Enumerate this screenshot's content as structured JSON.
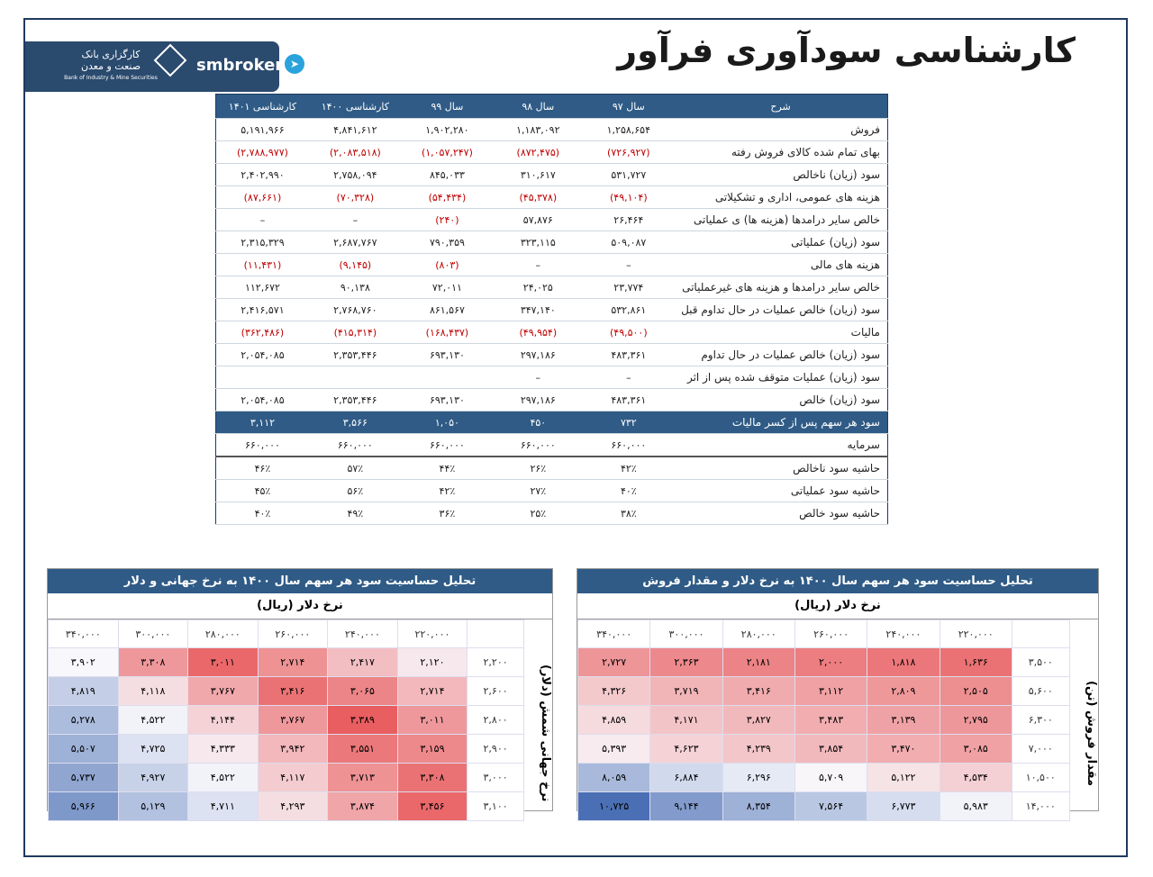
{
  "title": "کارشناسی سودآوری فرآور",
  "logo": {
    "bank_line1": "کارگزاری بانک",
    "bank_line2": "صنعت و معدن",
    "bank_en": "Bank of Industry & Mine Securities",
    "brand": "smbroker"
  },
  "main_table": {
    "headers": [
      "شرح",
      "سال ۹۷",
      "سال ۹۸",
      "سال ۹۹",
      "کارشناسی ۱۴۰۰",
      "کارشناسی ۱۴۰۱"
    ],
    "rows": [
      {
        "label": "فروش",
        "values": [
          "۱,۲۵۸,۶۵۴",
          "۱,۱۸۳,۰۹۲",
          "۱,۹۰۲,۲۸۰",
          "۴,۸۴۱,۶۱۲",
          "۵,۱۹۱,۹۶۶"
        ]
      },
      {
        "label": "بهای تمام شده کالای فروش رفته",
        "neg": true,
        "values": [
          "(۷۲۶,۹۲۷)",
          "(۸۷۲,۴۷۵)",
          "(۱,۰۵۷,۲۴۷)",
          "(۲,۰۸۳,۵۱۸)",
          "(۲,۷۸۸,۹۷۷)"
        ]
      },
      {
        "label": "سود (زیان) ناخالص",
        "values": [
          "۵۳۱,۷۲۷",
          "۳۱۰,۶۱۷",
          "۸۴۵,۰۳۳",
          "۲,۷۵۸,۰۹۴",
          "۲,۴۰۲,۹۹۰"
        ]
      },
      {
        "label": "هزینه های عمومی، اداری و تشکیلاتی",
        "neg": true,
        "values": [
          "(۴۹,۱۰۴)",
          "(۴۵,۳۷۸)",
          "(۵۴,۴۳۴)",
          "(۷۰,۳۲۸)",
          "(۸۷,۶۶۱)"
        ]
      },
      {
        "label": "خالص سایر درامدها (هزینه ها) ی عملیاتی",
        "values": [
          "۲۶,۴۶۴",
          "۵۷,۸۷۶",
          "(۲۴۰)",
          "–",
          "–"
        ],
        "negidx": [
          2
        ]
      },
      {
        "label": "سود (زیان) عملیاتی",
        "values": [
          "۵۰۹,۰۸۷",
          "۳۲۳,۱۱۵",
          "۷۹۰,۳۵۹",
          "۲,۶۸۷,۷۶۷",
          "۲,۳۱۵,۳۲۹"
        ]
      },
      {
        "label": "هزینه های مالی",
        "values": [
          "–",
          "–",
          "(۸۰۳)",
          "(۹,۱۴۵)",
          "(۱۱,۴۳۱)"
        ],
        "negidx": [
          2,
          3,
          4
        ]
      },
      {
        "label": "خالص سایر درامدها و هزینه های غیرعملیاتی",
        "values": [
          "۲۳,۷۷۴",
          "۲۴,۰۲۵",
          "۷۲,۰۱۱",
          "۹۰,۱۳۸",
          "۱۱۲,۶۷۲"
        ]
      },
      {
        "label": "سود (زیان) خالص عملیات در حال تداوم قبل",
        "values": [
          "۵۳۲,۸۶۱",
          "۳۴۷,۱۴۰",
          "۸۶۱,۵۶۷",
          "۲,۷۶۸,۷۶۰",
          "۲,۴۱۶,۵۷۱"
        ]
      },
      {
        "label": "مالیات",
        "neg": true,
        "values": [
          "(۴۹,۵۰۰)",
          "(۴۹,۹۵۴)",
          "(۱۶۸,۴۳۷)",
          "(۴۱۵,۳۱۴)",
          "(۳۶۲,۴۸۶)"
        ]
      },
      {
        "label": "سود (زیان) خالص عملیات در حال تداوم",
        "values": [
          "۴۸۳,۳۶۱",
          "۲۹۷,۱۸۶",
          "۶۹۳,۱۳۰",
          "۲,۳۵۳,۴۴۶",
          "۲,۰۵۴,۰۸۵"
        ]
      },
      {
        "label": "سود (زیان) عملیات متوقف شده پس از اثر",
        "values": [
          "–",
          "–",
          "",
          "",
          ""
        ]
      },
      {
        "label": "سود (زیان) خالص",
        "values": [
          "۴۸۳,۳۶۱",
          "۲۹۷,۱۸۶",
          "۶۹۳,۱۳۰",
          "۲,۳۵۳,۴۴۶",
          "۲,۰۵۴,۰۸۵"
        ]
      },
      {
        "label": "سود هر سهم پس از کسر مالیات",
        "highlight": true,
        "values": [
          "۷۳۲",
          "۴۵۰",
          "۱,۰۵۰",
          "۳,۵۶۶",
          "۳,۱۱۲"
        ]
      },
      {
        "label": "سرمایه",
        "values": [
          "۶۶۰,۰۰۰",
          "۶۶۰,۰۰۰",
          "۶۶۰,۰۰۰",
          "۶۶۰,۰۰۰",
          "۶۶۰,۰۰۰"
        ]
      },
      {
        "label": "حاشیه سود ناخالص",
        "sep": true,
        "values": [
          "۴۲٪",
          "۲۶٪",
          "۴۴٪",
          "۵۷٪",
          "۴۶٪"
        ]
      },
      {
        "label": "حاشیه سود عملیاتی",
        "values": [
          "۴۰٪",
          "۲۷٪",
          "۴۲٪",
          "۵۶٪",
          "۴۵٪"
        ]
      },
      {
        "label": "حاشیه سود خالص",
        "values": [
          "۳۸٪",
          "۲۵٪",
          "۳۶٪",
          "۴۹٪",
          "۴۰٪"
        ]
      }
    ]
  },
  "sens_left": {
    "title": "تحلیل حساسیت سود هر سهم سال ۱۴۰۰ به نرخ جهانی و دلار",
    "col_title": "نرخ دلار (ریال)",
    "row_title": "نرخ جهانی شمش (دلار)",
    "cols": [
      "۳۴۰,۰۰۰",
      "۳۰۰,۰۰۰",
      "۲۸۰,۰۰۰",
      "۲۶۰,۰۰۰",
      "۲۴۰,۰۰۰",
      "۲۲۰,۰۰۰"
    ],
    "rows": [
      {
        "label": "۲,۲۰۰",
        "cells": [
          "۳,۹۰۲",
          "۳,۳۰۸",
          "۳,۰۱۱",
          "۲,۷۱۴",
          "۲,۴۱۷",
          "۲,۱۲۰"
        ]
      },
      {
        "label": "۲,۶۰۰",
        "cells": [
          "۴,۸۱۹",
          "۴,۱۱۸",
          "۳,۷۶۷",
          "۳,۴۱۶",
          "۳,۰۶۵",
          "۲,۷۱۴"
        ]
      },
      {
        "label": "۲,۸۰۰",
        "cells": [
          "۵,۲۷۸",
          "۴,۵۲۲",
          "۴,۱۴۴",
          "۳,۷۶۷",
          "۳,۳۸۹",
          "۳,۰۱۱"
        ]
      },
      {
        "label": "۲,۹۰۰",
        "cells": [
          "۵,۵۰۷",
          "۴,۷۲۵",
          "۴,۳۳۳",
          "۳,۹۴۲",
          "۳,۵۵۱",
          "۳,۱۵۹"
        ]
      },
      {
        "label": "۳,۰۰۰",
        "cells": [
          "۵,۷۳۷",
          "۴,۹۲۷",
          "۴,۵۲۲",
          "۴,۱۱۷",
          "۳,۷۱۳",
          "۳,۳۰۸"
        ]
      },
      {
        "label": "۳,۱۰۰",
        "cells": [
          "۵,۹۶۶",
          "۵,۱۲۹",
          "۴,۷۱۱",
          "۴,۲۹۳",
          "۳,۸۷۴",
          "۳,۴۵۶"
        ]
      }
    ],
    "shade": [
      [
        0.5,
        0.2,
        0.05,
        0.18,
        0.32,
        0.45
      ],
      [
        0.65,
        0.42,
        0.25,
        0.08,
        0.14,
        0.3
      ],
      [
        0.72,
        0.52,
        0.38,
        0.2,
        0.02,
        0.2
      ],
      [
        0.76,
        0.58,
        0.45,
        0.3,
        0.1,
        0.15
      ],
      [
        0.8,
        0.64,
        0.52,
        0.36,
        0.18,
        0.08
      ],
      [
        0.85,
        0.7,
        0.58,
        0.42,
        0.24,
        0.05
      ]
    ]
  },
  "sens_right": {
    "title": "تحلیل حساسیت سود هر سهم سال ۱۴۰۰ به نرخ دلار و مقدار فروش",
    "col_title": "نرخ دلار (ریال)",
    "row_title": "مقدار فروش (تن)",
    "cols": [
      "۳۴۰,۰۰۰",
      "۳۰۰,۰۰۰",
      "۲۸۰,۰۰۰",
      "۲۶۰,۰۰۰",
      "۲۴۰,۰۰۰",
      "۲۲۰,۰۰۰"
    ],
    "rows": [
      {
        "label": "۳,۵۰۰",
        "cells": [
          "۲,۷۲۷",
          "۲,۳۶۳",
          "۲,۱۸۱",
          "۲,۰۰۰",
          "۱,۸۱۸",
          "۱,۶۳۶"
        ]
      },
      {
        "label": "۵,۶۰۰",
        "cells": [
          "۴,۳۲۶",
          "۳,۷۱۹",
          "۳,۴۱۶",
          "۳,۱۱۲",
          "۲,۸۰۹",
          "۲,۵۰۵"
        ]
      },
      {
        "label": "۶,۳۰۰",
        "cells": [
          "۴,۸۵۹",
          "۴,۱۷۱",
          "۳,۸۲۷",
          "۳,۴۸۳",
          "۳,۱۳۹",
          "۲,۷۹۵"
        ]
      },
      {
        "label": "۷,۰۰۰",
        "cells": [
          "۵,۳۹۳",
          "۴,۶۲۳",
          "۴,۲۳۹",
          "۳,۸۵۴",
          "۳,۴۷۰",
          "۳,۰۸۵"
        ]
      },
      {
        "label": "۱۰,۵۰۰",
        "cells": [
          "۸,۰۵۹",
          "۶,۸۸۴",
          "۶,۲۹۶",
          "۵,۷۰۹",
          "۵,۱۲۲",
          "۴,۵۳۴"
        ]
      },
      {
        "label": "۱۴,۰۰۰",
        "cells": [
          "۱۰,۷۲۵",
          "۹,۱۴۴",
          "۸,۳۵۴",
          "۷,۵۶۴",
          "۶,۷۷۳",
          "۵,۹۸۳"
        ]
      }
    ]
  },
  "colors": {
    "navy": "#2f5b86",
    "neg": "#c00000",
    "red": "#e8585a",
    "blue": "#4a6fb5"
  }
}
